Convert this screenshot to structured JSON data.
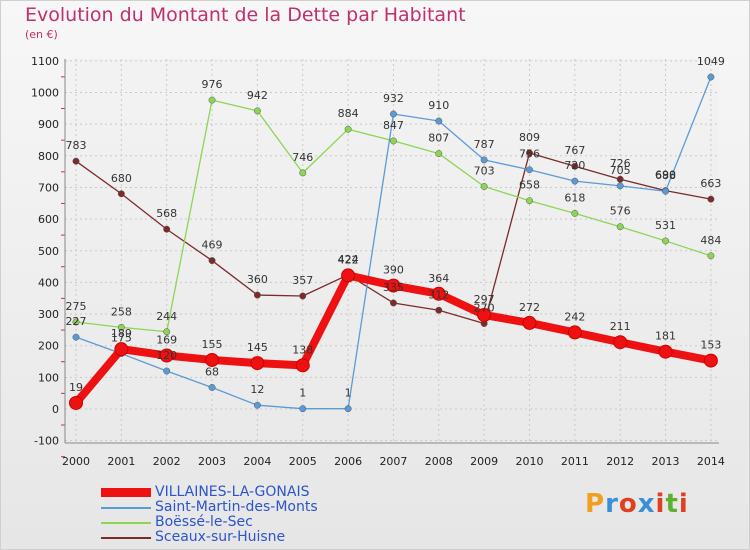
{
  "title": "Evolution du Montant de la Dette par Habitant",
  "subtitle": "(en €)",
  "logo": {
    "letters": [
      "P",
      "r",
      "o",
      "x",
      "i",
      "t",
      "i"
    ],
    "colors": [
      "#f0a020",
      "#3a8fd8",
      "#e04020",
      "#3a8fd8",
      "#e04020",
      "#5fb030",
      "#e04020"
    ]
  },
  "chart_data": {
    "type": "line",
    "categories": [
      "2000",
      "2001",
      "2002",
      "2003",
      "2004",
      "2005",
      "2006",
      "2007",
      "2008",
      "2009",
      "2010",
      "2011",
      "2012",
      "2013",
      "2014"
    ],
    "ylim": [
      -100,
      1100
    ],
    "yticks": [
      "-100",
      "0",
      "100",
      "200",
      "300",
      "400",
      "500",
      "600",
      "700",
      "800",
      "900",
      "1000",
      "1100"
    ],
    "grid": true,
    "legend_position": "bottom-left",
    "series": [
      {
        "name": "VILLAINES-LA-GONAIS",
        "color": "#ee1111",
        "values": [
          19,
          189,
          169,
          155,
          145,
          138,
          422,
          390,
          364,
          297,
          272,
          242,
          211,
          181,
          153
        ],
        "labels": [
          "19",
          "189",
          "169",
          "155",
          "145",
          "138",
          "422",
          "390",
          "364",
          "297",
          "272",
          "242",
          "211",
          "181",
          "153"
        ]
      },
      {
        "name": "Saint-Martin-des-Monts",
        "color": "#5b9bd5",
        "values": [
          227,
          175,
          120,
          68,
          12,
          1,
          1,
          932,
          910,
          787,
          756,
          720,
          705,
          688,
          1049
        ],
        "labels": [
          "227",
          "175",
          "120",
          "68",
          "12",
          "1",
          "1",
          "932",
          "910",
          "787",
          "756",
          "720",
          "705",
          "688",
          "1049"
        ]
      },
      {
        "name": "Boëssé-le-Sec",
        "color": "#8ed455",
        "values": [
          275,
          258,
          244,
          976,
          942,
          746,
          884,
          847,
          807,
          703,
          658,
          618,
          576,
          531,
          484
        ],
        "labels": [
          "275",
          "258",
          "244",
          "976",
          "942",
          "746",
          "884",
          "847",
          "807",
          "703",
          "658",
          "618",
          "576",
          "531",
          "484"
        ]
      },
      {
        "name": "Sceaux-sur-Huisne",
        "color": "#7b2b2b",
        "values": [
          783,
          680,
          568,
          469,
          360,
          357,
          424,
          335,
          312,
          270,
          809,
          767,
          726,
          690,
          663
        ],
        "labels": [
          "783",
          "680",
          "568",
          "469",
          "360",
          "357",
          "424",
          "335",
          "312",
          "270",
          "809",
          "767",
          "726",
          "690",
          "663"
        ]
      }
    ]
  }
}
